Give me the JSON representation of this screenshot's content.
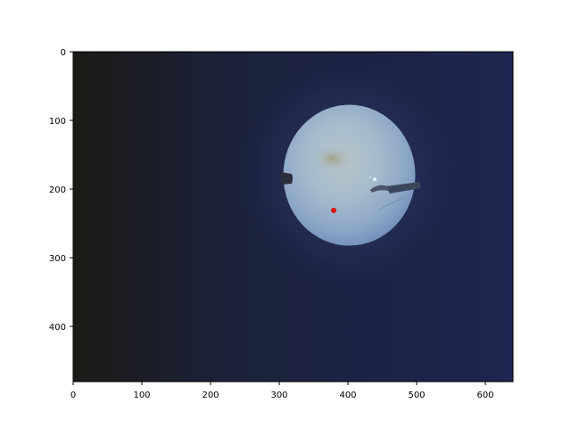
{
  "image_axes": {
    "x_ticks": [
      0,
      100,
      200,
      300,
      400,
      500,
      600
    ],
    "y_ticks": [
      0,
      100,
      200,
      300,
      400
    ],
    "xlim": [
      0,
      640
    ],
    "ylim": [
      0,
      480
    ],
    "y_inverted": true,
    "grid": false
  },
  "scene": {
    "description_hidden": "fundus image with tool",
    "background_color": "#1c2445",
    "left_edge_color": "#1d1e18",
    "fundus_color": "#a9bccb",
    "fundus_center": [
      390,
      180
    ],
    "fundus_radius": [
      96,
      102
    ],
    "marker_point": [
      380,
      232
    ],
    "marker_color": "#e01010"
  }
}
